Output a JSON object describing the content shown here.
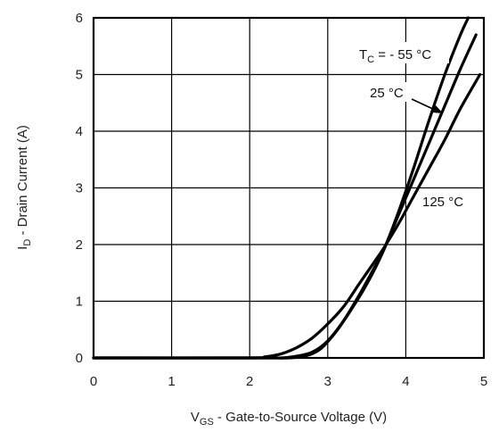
{
  "chart_data": {
    "type": "line",
    "xlabel": "VGS - Gate-to-Source Voltage (V)",
    "xlabel_main": "V",
    "xlabel_sub": "GS",
    "xlabel_rest": " - Gate-to-Source Voltage (V)",
    "ylabel": "ID - Drain Current (A)",
    "ylabel_main": "I",
    "ylabel_sub": "D",
    "ylabel_rest": " - Drain Current (A)",
    "xlim": [
      0,
      5
    ],
    "ylim": [
      0,
      6
    ],
    "xticks": [
      "0",
      "1",
      "2",
      "3",
      "4",
      "5"
    ],
    "yticks": [
      "0",
      "1",
      "2",
      "3",
      "4",
      "5",
      "6"
    ],
    "grid": true,
    "series": [
      {
        "name": "TC = - 55 °C",
        "x": [
          2.0,
          2.3,
          2.5,
          2.7,
          2.9,
          3.1,
          3.3,
          3.5,
          3.7,
          3.9,
          4.1,
          4.3,
          4.5,
          4.7,
          4.8
        ],
        "y": [
          0.0,
          0.0,
          0.0,
          0.03,
          0.15,
          0.45,
          0.85,
          1.3,
          1.85,
          2.55,
          3.35,
          4.2,
          5.0,
          5.7,
          6.0
        ]
      },
      {
        "name": "25 °C",
        "x": [
          2.2,
          2.4,
          2.6,
          2.8,
          3.0,
          3.2,
          3.4,
          3.6,
          3.7,
          3.9,
          4.1,
          4.3,
          4.5,
          4.7,
          4.9
        ],
        "y": [
          0.0,
          0.0,
          0.03,
          0.1,
          0.3,
          0.65,
          1.1,
          1.6,
          1.85,
          2.5,
          3.15,
          3.8,
          4.45,
          5.1,
          5.7
        ]
      },
      {
        "name": "125 °C",
        "x": [
          1.95,
          2.2,
          2.4,
          2.6,
          2.8,
          3.0,
          3.2,
          3.4,
          3.6,
          3.7,
          3.9,
          4.1,
          4.3,
          4.5,
          4.7,
          4.95
        ],
        "y": [
          0.0,
          0.02,
          0.07,
          0.18,
          0.35,
          0.6,
          0.9,
          1.3,
          1.7,
          1.9,
          2.35,
          2.85,
          3.35,
          3.85,
          4.4,
          5.0
        ]
      }
    ],
    "annotations": {
      "tc_main": "T",
      "tc_sub": "C",
      "tc_rest": " = - 55 °C",
      "t25": "25 °C",
      "t125": "125 °C"
    }
  }
}
